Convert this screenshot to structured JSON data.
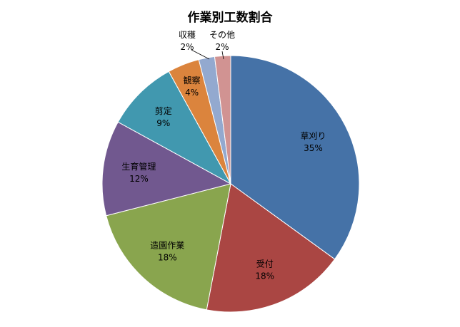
{
  "chart_data": {
    "type": "pie",
    "title": "作業別工数割合",
    "slices": [
      {
        "name": "草刈り",
        "percent_label": "35%",
        "value": 35,
        "color": "#4572A7"
      },
      {
        "name": "受付",
        "percent_label": "18%",
        "value": 18,
        "color": "#AA4643"
      },
      {
        "name": "造園作業",
        "percent_label": "18%",
        "value": 18,
        "color": "#89A54E"
      },
      {
        "name": "生育管理",
        "percent_label": "12%",
        "value": 12,
        "color": "#71588F"
      },
      {
        "name": "剪定",
        "percent_label": "9%",
        "value": 9,
        "color": "#4198AF"
      },
      {
        "name": "観察",
        "percent_label": "4%",
        "value": 4,
        "color": "#DB843D"
      },
      {
        "name": "収穫",
        "percent_label": "2%",
        "value": 2,
        "color": "#93A9CF"
      },
      {
        "name": "その他",
        "percent_label": "2%",
        "value": 2,
        "color": "#D19392"
      }
    ]
  }
}
